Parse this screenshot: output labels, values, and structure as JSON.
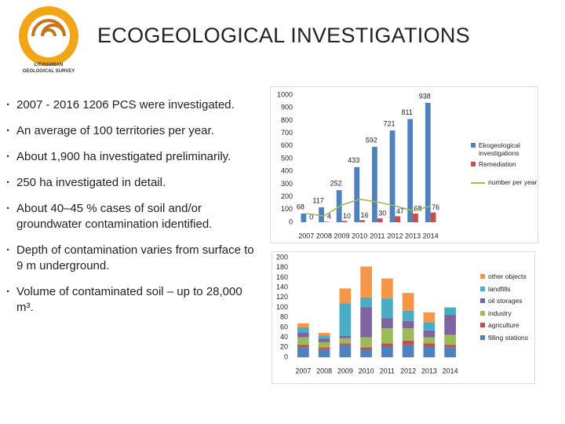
{
  "logo": {
    "caption": [
      "LITHUANIAN",
      "GEOLOGICAL SURVEY"
    ]
  },
  "slide": {
    "title": "ECOGEOLOGICAL INVESTIGATIONS",
    "bullets": [
      "2007 - 2016 1206 PCS were investigated.",
      "An average of 100 territories per year.",
      "About 1,900 ha investigated preliminarily.",
      "250 ha investigated in detail.",
      "About 40–45 % cases of soil and/or groundwater contamination identified.",
      "Depth of contamination varies from surface to 9 m underground.",
      "Volume of contaminated soil – up to 28,000 m³."
    ]
  },
  "chart_data": [
    {
      "type": "bar",
      "categories": [
        "2007",
        "2008",
        "2009",
        "2010",
        "2011",
        "2012",
        "2013",
        "2014"
      ],
      "ylim": [
        0,
        1000
      ],
      "yticks": [
        0,
        100,
        200,
        300,
        400,
        500,
        600,
        700,
        800,
        900,
        1000
      ],
      "grid": false,
      "series": [
        {
          "name": "Ekogeological investigations",
          "color": "#4f81bd",
          "values": [
            68,
            117,
            252,
            433,
            592,
            721,
            811,
            938
          ],
          "data_labels": true
        },
        {
          "name": "Remediation",
          "color": "#c0504d",
          "values": [
            0,
            4,
            10,
            16,
            30,
            47,
            68,
            76
          ],
          "data_labels": true
        },
        {
          "name": "number per year",
          "color": "#9bbb59",
          "type": "line",
          "values": [
            68,
            49,
            135,
            181,
            159,
            129,
            90,
            127
          ],
          "data_labels": false
        }
      ]
    },
    {
      "type": "bar",
      "stacked": true,
      "categories": [
        "2007",
        "2008",
        "2009",
        "2010",
        "2011",
        "2012",
        "2013",
        "2014"
      ],
      "ylim": [
        0,
        200
      ],
      "yticks": [
        0,
        20,
        40,
        60,
        80,
        100,
        120,
        140,
        160,
        180,
        200
      ],
      "grid": false,
      "series": [
        {
          "name": "filling stations",
          "color": "#4f81bd",
          "values": [
            20,
            16,
            25,
            15,
            22,
            25,
            22,
            20
          ]
        },
        {
          "name": "agriculture",
          "color": "#c0504d",
          "values": [
            5,
            4,
            3,
            5,
            6,
            8,
            6,
            5
          ]
        },
        {
          "name": "industry",
          "color": "#9bbb59",
          "values": [
            15,
            10,
            10,
            20,
            30,
            25,
            12,
            20
          ]
        },
        {
          "name": "oil storages",
          "color": "#8064a2",
          "values": [
            10,
            8,
            5,
            60,
            20,
            15,
            14,
            40
          ]
        },
        {
          "name": "landfills",
          "color": "#4bacc6",
          "values": [
            10,
            6,
            65,
            20,
            40,
            20,
            16,
            15
          ]
        },
        {
          "name": "other objects",
          "color": "#f79646",
          "values": [
            8,
            5,
            30,
            62,
            40,
            36,
            20,
            0
          ]
        }
      ]
    }
  ]
}
